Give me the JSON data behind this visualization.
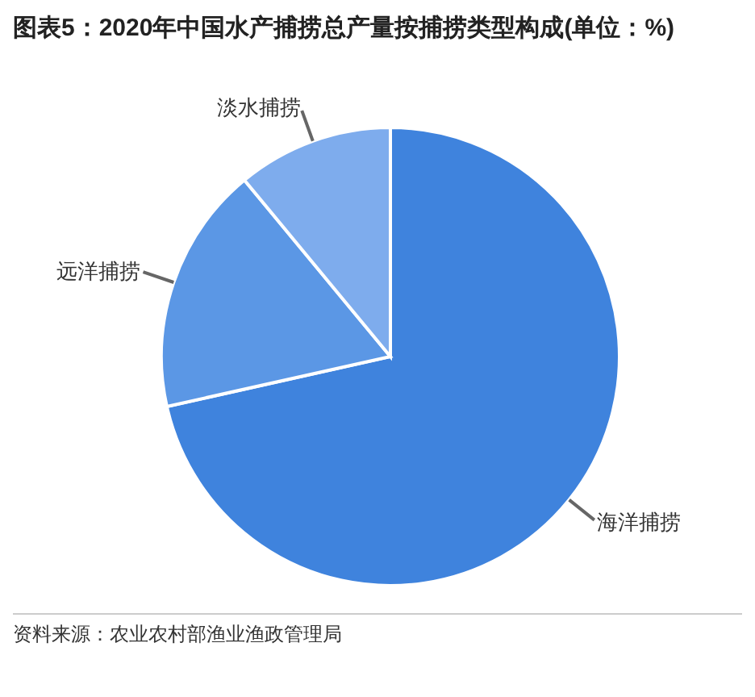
{
  "chart_data": {
    "type": "pie",
    "title": "图表5：2020年中国水产捕捞总产量按捕捞类型构成(单位：%)",
    "categories": [
      "海洋捕捞",
      "远洋捕捞",
      "淡水捕捞"
    ],
    "values": [
      71.5,
      17.5,
      11.0
    ],
    "colors": [
      "#3f83dd",
      "#5b97e5",
      "#7eaced"
    ],
    "annotations": [
      "资料来源：农业农村部渔业渔政管理局"
    ],
    "legend": false
  }
}
